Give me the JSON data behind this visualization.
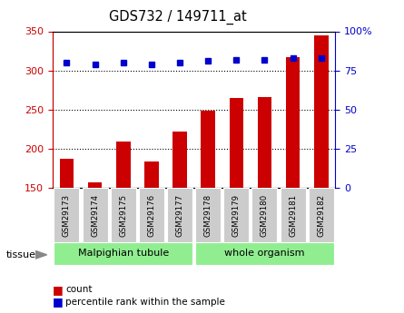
{
  "title": "GDS732 / 149711_at",
  "samples": [
    "GSM29173",
    "GSM29174",
    "GSM29175",
    "GSM29176",
    "GSM29177",
    "GSM29178",
    "GSM29179",
    "GSM29180",
    "GSM29181",
    "GSM29182"
  ],
  "count_values": [
    187,
    157,
    209,
    184,
    222,
    248,
    265,
    266,
    317,
    345
  ],
  "percentile_values": [
    80,
    79,
    80,
    79,
    80,
    81,
    82,
    82,
    83,
    83
  ],
  "tissue_groups": [
    {
      "label": "Malpighian tubule",
      "n_samples": 5,
      "color": "#90EE90"
    },
    {
      "label": "whole organism",
      "n_samples": 5,
      "color": "#90EE90"
    }
  ],
  "ylim_left": [
    150,
    350
  ],
  "ylim_right": [
    0,
    100
  ],
  "yticks_left": [
    150,
    200,
    250,
    300,
    350
  ],
  "yticks_right": [
    0,
    25,
    50,
    75,
    100
  ],
  "bar_color": "#CC0000",
  "dot_color": "#0000CC",
  "bar_bottom": 150,
  "grid_values": [
    200,
    250,
    300
  ],
  "background_color": "#ffffff",
  "plot_bg_color": "#ffffff",
  "ylabel_left_color": "#CC0000",
  "ylabel_right_color": "#0000CC",
  "tick_label_bg": "#cccccc",
  "tissue_label": "tissue"
}
